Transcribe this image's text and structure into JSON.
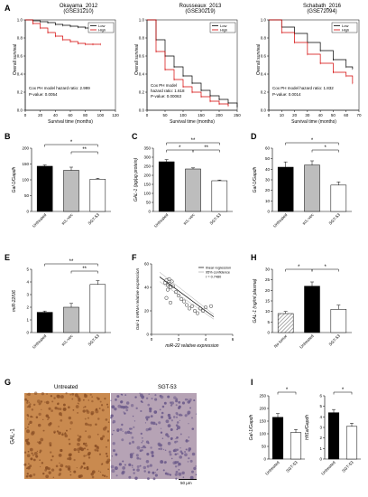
{
  "panels": {
    "A": {
      "label": "A"
    },
    "B": {
      "label": "B"
    },
    "C": {
      "label": "C"
    },
    "D": {
      "label": "D"
    },
    "E": {
      "label": "E"
    },
    "F": {
      "label": "F"
    },
    "G": {
      "label": "G"
    },
    "H": {
      "label": "H"
    },
    "I": {
      "label": "I"
    }
  },
  "km_common": {
    "ylabel": "Overall survival",
    "xlabel": "Survival time (months)",
    "legend_low": "Low",
    "legend_high": "High",
    "low_color": "#000000",
    "high_color": "#d40000"
  },
  "km": [
    {
      "title": "Okayama_2012",
      "subtitle": "(GSE31210)",
      "note1": "Cox PH model hazard ratio: 2.999",
      "note2": "P-value: 0.0054",
      "xticks": [
        "0",
        "20",
        "40",
        "60",
        "80",
        "100",
        "120"
      ],
      "yticks": [
        "0.0",
        "0.2",
        "0.4",
        "0.6",
        "0.8",
        "1.0"
      ]
    },
    {
      "title": "Rousseaux_2013",
      "subtitle": "(GSE30219)",
      "note1": "Cox PH model",
      "note2": "hazard ratio: 1.618",
      "note3": "P-value: 0.00063",
      "xticks": [
        "0",
        "50",
        "100",
        "150",
        "200",
        "250"
      ],
      "yticks": [
        "0.0",
        "0.2",
        "0.4",
        "0.6",
        "0.8",
        "1.0"
      ]
    },
    {
      "title": "Schabath_2016",
      "subtitle": "(GSE72094)",
      "note1": "Cox PH model hazard ratio: 1.832",
      "note2": "P-value: 0.0014",
      "xticks": [
        "0",
        "10",
        "20",
        "30",
        "40",
        "50",
        "60",
        "70"
      ],
      "yticks": [
        "0.0",
        "0.2",
        "0.4",
        "0.6",
        "0.8",
        "1.0"
      ]
    }
  ],
  "chart_data": [
    {
      "type": "line",
      "panel": "A-1",
      "title": "Okayama_2012 (GSE31210)",
      "xlabel": "Survival time (months)",
      "ylabel": "Overall survival",
      "xlim": [
        0,
        120
      ],
      "ylim": [
        0,
        1
      ],
      "series": [
        {
          "name": "Low",
          "x": [
            0,
            10,
            20,
            30,
            40,
            50,
            60,
            70,
            80,
            90,
            100,
            110
          ],
          "y": [
            1.0,
            0.99,
            0.98,
            0.97,
            0.95,
            0.94,
            0.93,
            0.92,
            0.91,
            0.9,
            0.9,
            0.9
          ]
        },
        {
          "name": "High",
          "x": [
            0,
            10,
            20,
            30,
            40,
            50,
            60,
            70,
            80,
            90,
            100
          ],
          "y": [
            1.0,
            0.96,
            0.91,
            0.86,
            0.82,
            0.78,
            0.76,
            0.74,
            0.73,
            0.73,
            0.73
          ]
        }
      ]
    },
    {
      "type": "line",
      "panel": "A-2",
      "title": "Rousseaux_2013 (GSE30219)",
      "xlabel": "Survival time (months)",
      "ylabel": "Overall survival",
      "xlim": [
        0,
        250
      ],
      "ylim": [
        0,
        1
      ],
      "series": [
        {
          "name": "Low",
          "x": [
            0,
            25,
            50,
            75,
            100,
            125,
            150,
            175,
            200,
            225,
            250
          ],
          "y": [
            1.0,
            0.78,
            0.6,
            0.48,
            0.38,
            0.3,
            0.22,
            0.16,
            0.12,
            0.08,
            0.04
          ]
        },
        {
          "name": "High",
          "x": [
            0,
            25,
            50,
            75,
            100,
            125,
            150,
            175,
            200,
            225
          ],
          "y": [
            1.0,
            0.65,
            0.45,
            0.34,
            0.26,
            0.2,
            0.15,
            0.1,
            0.07,
            0.05
          ]
        }
      ]
    },
    {
      "type": "line",
      "panel": "A-3",
      "title": "Schabath_2016 (GSE72094)",
      "xlabel": "Survival time (months)",
      "ylabel": "Overall survival",
      "xlim": [
        0,
        70
      ],
      "ylim": [
        0,
        1
      ],
      "series": [
        {
          "name": "Low",
          "x": [
            0,
            10,
            20,
            30,
            40,
            50,
            60,
            65
          ],
          "y": [
            1.0,
            0.92,
            0.85,
            0.75,
            0.66,
            0.56,
            0.48,
            0.46
          ]
        },
        {
          "name": "High",
          "x": [
            0,
            10,
            20,
            30,
            40,
            50,
            60,
            65
          ],
          "y": [
            1.0,
            0.86,
            0.75,
            0.62,
            0.52,
            0.42,
            0.38,
            0.3
          ]
        }
      ]
    },
    {
      "type": "bar",
      "panel": "B",
      "ylabel": "Gal-1/Gapdh",
      "categories": [
        "Untreated",
        "scL-vec",
        "SGT-53"
      ],
      "values": [
        143,
        130,
        102
      ],
      "errors": [
        4,
        10,
        3
      ],
      "ylim": [
        0,
        200
      ],
      "yticks": [
        "0",
        "50",
        "100",
        "150",
        "200"
      ],
      "sig": [
        "*",
        "**"
      ]
    },
    {
      "type": "bar",
      "panel": "C",
      "ylabel": "GAL-1 (pg/μg protein)",
      "categories": [
        "Untreated",
        "scL-vec",
        "SGT-53"
      ],
      "values": [
        275,
        235,
        170
      ],
      "errors": [
        12,
        6,
        4
      ],
      "ylim": [
        0,
        350
      ],
      "yticks": [
        "0",
        "50",
        "100",
        "150",
        "200",
        "250",
        "300",
        "350"
      ],
      "sig": [
        "**",
        "*",
        "**"
      ]
    },
    {
      "type": "bar",
      "panel": "D",
      "ylabel": "Gal-1/Gapdh",
      "categories": [
        "Untreated",
        "scL-vec",
        "SGT-53"
      ],
      "values": [
        42,
        44,
        25
      ],
      "errors": [
        5,
        4,
        3
      ],
      "ylim": [
        0,
        60
      ],
      "yticks": [
        "0",
        "10",
        "20",
        "30",
        "40",
        "50",
        "60"
      ],
      "sig": [
        "*",
        "*"
      ]
    },
    {
      "type": "bar",
      "panel": "E",
      "ylabel": "miR-22/U6",
      "categories": [
        "Untreated",
        "scL-vec",
        "SGT-53"
      ],
      "values": [
        1.6,
        2.0,
        3.8
      ],
      "errors": [
        0.1,
        0.3,
        0.3
      ],
      "ylim": [
        0,
        5
      ],
      "yticks": [
        "0",
        "1",
        "2",
        "3",
        "4",
        "5"
      ],
      "sig": [
        "**",
        "**"
      ]
    },
    {
      "type": "scatter",
      "panel": "F",
      "xlabel": "miR-22 relative expression",
      "ylabel": "Gal-1 mRNA relative expression",
      "xlim": [
        0,
        6
      ],
      "ylim": [
        0,
        60
      ],
      "xticks": [
        "0",
        "2",
        "4",
        "6"
      ],
      "yticks": [
        "0",
        "20",
        "40",
        "60"
      ],
      "legend": [
        "linear regression",
        "95% confidence",
        "r = 0.7480"
      ],
      "x": [
        1.0,
        1.1,
        1.2,
        1.3,
        1.4,
        1.5,
        1.2,
        1.3,
        1.6,
        1.8,
        2.0,
        2.2,
        2.4,
        2.6,
        2.8,
        3.0,
        3.2,
        3.4,
        3.6,
        3.8,
        4.0,
        4.4,
        1.1,
        1.4
      ],
      "y": [
        44,
        46,
        42,
        43,
        40,
        45,
        38,
        47,
        41,
        36,
        33,
        30,
        28,
        25,
        22,
        24,
        20,
        18,
        22,
        20,
        23,
        24,
        31,
        27
      ]
    },
    {
      "type": "bar",
      "panel": "H",
      "ylabel": "GAL-1 (ng/ml plasma)",
      "categories": [
        "No tumor",
        "Untreated",
        "SGT-53"
      ],
      "values": [
        9,
        22,
        11
      ],
      "errors": [
        1,
        2,
        2
      ],
      "ylim": [
        0,
        30
      ],
      "yticks": [
        "0",
        "5",
        "10",
        "15",
        "20",
        "25",
        "30"
      ],
      "sig": [
        "*",
        "*"
      ]
    },
    {
      "type": "bar",
      "panel": "I-1",
      "ylabel": "Gal-1/Gapdh",
      "categories": [
        "Untreated",
        "SGT-53"
      ],
      "values": [
        165,
        105
      ],
      "errors": [
        15,
        12
      ],
      "ylim": [
        0,
        250
      ],
      "yticks": [
        "0",
        "50",
        "100",
        "150",
        "200",
        "250"
      ],
      "sig": [
        "*"
      ]
    },
    {
      "type": "bar",
      "panel": "I-2",
      "ylabel": "Hif1a/Gapdh",
      "categories": [
        "Untreated",
        "SGT-53"
      ],
      "values": [
        4.4,
        3.1
      ],
      "errors": [
        0.3,
        0.3
      ],
      "ylim": [
        0,
        6
      ],
      "yticks": [
        "0",
        "1",
        "2",
        "3",
        "4",
        "5",
        "6"
      ],
      "sig": [
        "*"
      ]
    }
  ],
  "ihc": {
    "untreated_label": "Untreated",
    "sgt_label": "SGT-53",
    "row_label": "GAL-1",
    "scale_label": "50 μm",
    "untreated_color": "#c98a4f",
    "sgt_color": "#b6a3b5"
  }
}
